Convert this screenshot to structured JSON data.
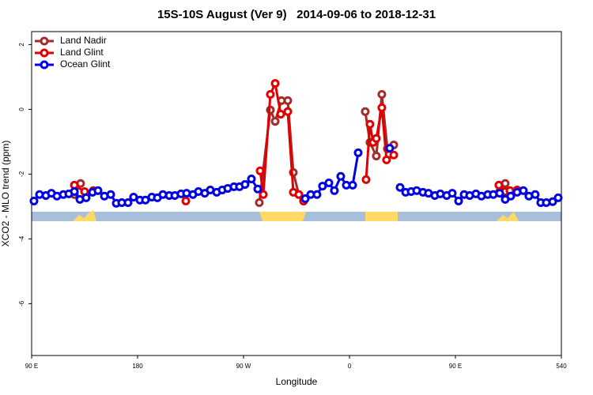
{
  "chart_data": {
    "type": "line",
    "title": "15S-10S August (Ver 9)   2014-09-06 to 2018-12-31",
    "x_label": "Longitude",
    "y_label": "XCO2 - MLO trend (ppm)",
    "xlim": [
      90,
      540
    ],
    "ylim": [
      -7.6,
      2.4
    ],
    "xticks": [
      {
        "value": 90,
        "label": "90 E"
      },
      180,
      {
        "value": 270,
        "label": "90 W"
      },
      {
        "value": 360,
        "label": "0"
      },
      {
        "value": 450,
        "label": "90 E"
      },
      540
    ],
    "yticks": [
      -6,
      -4,
      -2,
      0,
      2
    ],
    "legend": "top-left",
    "series": [
      {
        "name": "Land Nadir",
        "color": "#a52a2a",
        "x": [
          126.3,
          131.6,
          null,
          283.4,
          292.8,
          296.9,
          302.2,
          307.6,
          312.3,
          317.0,
          321.0,
          null,
          373.4,
          377.4,
          382.8,
          387.5,
          392.2,
          397.6,
          null,
          487.6,
          492.3,
          497.0
        ],
        "values": [
          -2.63,
          -2.29,
          null,
          -2.88,
          -0.02,
          -0.37,
          0.27,
          0.27,
          -1.95,
          -2.63,
          -2.83,
          null,
          -0.07,
          -1.02,
          -1.44,
          0.46,
          -1.22,
          -1.1,
          null,
          -2.54,
          -2.29,
          -2.54
        ]
      },
      {
        "name": "Land Glint",
        "color": "#e00000",
        "x": [
          126.3,
          135.0,
          142.4,
          null,
          221.0,
          null,
          284.1,
          286.8,
          292.8,
          296.9,
          301.6,
          307.6,
          312.3,
          317.0,
          321.0,
          null,
          374.1,
          377.4,
          380.1,
          382.8,
          387.5,
          391.5,
          397.6,
          null,
          486.9,
          492.3,
          496.3,
          502.4
        ],
        "values": [
          -2.34,
          -2.54,
          -2.51,
          null,
          -2.83,
          null,
          -1.9,
          -2.63,
          0.46,
          0.8,
          -0.15,
          -0.07,
          -2.56,
          -2.63,
          -2.83,
          null,
          -2.17,
          -0.46,
          -1.02,
          -0.9,
          0.05,
          -1.56,
          -1.41,
          null,
          -2.34,
          -2.54,
          -2.51,
          -2.49
        ]
      },
      {
        "name": "Ocean Glint",
        "color": "#0000e0",
        "x": [
          92.0,
          96.7,
          102.1,
          106.8,
          111.5,
          116.9,
          121.6,
          126.3,
          131.0,
          136.3,
          141.7,
          146.4,
          151.8,
          157.2,
          161.9,
          166.6,
          171.9,
          176.6,
          182.0,
          186.7,
          192.1,
          196.8,
          201.5,
          206.9,
          211.6,
          216.9,
          221.6,
          227.0,
          231.7,
          237.1,
          241.8,
          247.2,
          251.9,
          256.6,
          261.9,
          266.6,
          271.3,
          276.7,
          282.1,
          null,
          322.4,
          327.1,
          332.4,
          337.1,
          342.5,
          347.2,
          352.6,
          357.3,
          362.7,
          367.4,
          null,
          394.2,
          null,
          403.0,
          407.7,
          412.4,
          417.1,
          422.4,
          427.1,
          432.5,
          437.2,
          442.6,
          447.3,
          452.7,
          457.4,
          462.1,
          467.4,
          472.1,
          477.5,
          482.2,
          487.6,
          492.3,
          497.0,
          502.4,
          507.7,
          512.4,
          517.8,
          522.5,
          527.2,
          532.6,
          537.3
        ],
        "values": [
          -2.83,
          -2.63,
          -2.66,
          -2.59,
          -2.68,
          -2.63,
          -2.61,
          -2.54,
          -2.78,
          -2.73,
          -2.56,
          -2.51,
          -2.68,
          -2.63,
          -2.9,
          -2.88,
          -2.88,
          -2.71,
          -2.8,
          -2.8,
          -2.71,
          -2.73,
          -2.63,
          -2.66,
          -2.66,
          -2.61,
          -2.59,
          -2.63,
          -2.54,
          -2.59,
          -2.49,
          -2.56,
          -2.49,
          -2.44,
          -2.39,
          -2.39,
          -2.32,
          -2.15,
          -2.46,
          null,
          -2.76,
          -2.63,
          -2.63,
          -2.37,
          -2.27,
          -2.51,
          -2.07,
          -2.34,
          -2.34,
          -1.34,
          null,
          -1.2,
          null,
          -2.41,
          -2.56,
          -2.54,
          -2.51,
          -2.56,
          -2.59,
          -2.66,
          -2.61,
          -2.66,
          -2.59,
          -2.83,
          -2.63,
          -2.66,
          -2.61,
          -2.68,
          -2.63,
          -2.63,
          -2.59,
          -2.78,
          -2.68,
          -2.56,
          -2.51,
          -2.68,
          -2.63,
          -2.88,
          -2.88,
          -2.85,
          -2.73
        ]
      }
    ]
  }
}
